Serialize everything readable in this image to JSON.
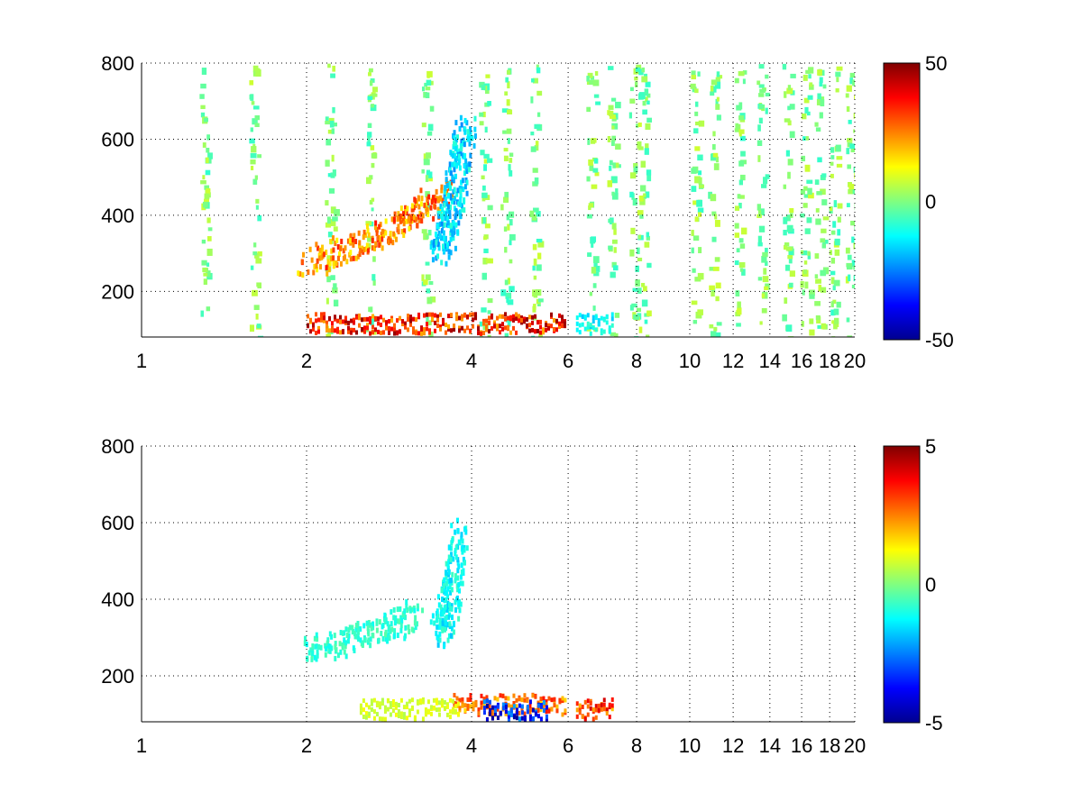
{
  "chart_data": [
    {
      "type": "heatmap",
      "title": "",
      "xlabel": "",
      "ylabel": "",
      "x_scale": "log",
      "xlim": [
        1,
        20
      ],
      "ylim": [
        80,
        800
      ],
      "xticks": [
        1,
        2,
        4,
        6,
        8,
        10,
        12,
        14,
        16,
        18,
        20
      ],
      "yticks": [
        200,
        400,
        600,
        800
      ],
      "grid": true,
      "colormap": "jet",
      "colorbar": {
        "range": [
          -50,
          50
        ],
        "ticks": [
          50,
          0,
          -50
        ],
        "position": "right"
      },
      "features": [
        {
          "kind": "ridge",
          "x": [
            2.0,
            2.4,
            2.8,
            3.2,
            3.6
          ],
          "y": [
            280,
            320,
            360,
            420,
            470
          ],
          "value": 30
        },
        {
          "kind": "ridge",
          "x": [
            3.5,
            3.6,
            3.7,
            3.8,
            3.9
          ],
          "y": [
            300,
            380,
            450,
            560,
            650
          ],
          "value": -20
        },
        {
          "kind": "band",
          "x_range": [
            2.0,
            5.9
          ],
          "y": 120,
          "value": 40
        },
        {
          "kind": "band",
          "x_range": [
            6.2,
            7.2
          ],
          "y": 120,
          "value": -15
        }
      ],
      "noise_columns": [
        1.3,
        1.6,
        2.2,
        2.6,
        3.3,
        4.2,
        4.6,
        5.2,
        6.6,
        7.2,
        7.9,
        8.2,
        10.2,
        11.0,
        12.3,
        13.5,
        15.0,
        16.2,
        17.2,
        18.3,
        19.6
      ],
      "noise_level": 8
    },
    {
      "type": "heatmap",
      "title": "",
      "xlabel": "",
      "ylabel": "",
      "x_scale": "log",
      "xlim": [
        1,
        20
      ],
      "ylim": [
        80,
        800
      ],
      "xticks": [
        1,
        2,
        4,
        6,
        8,
        10,
        12,
        14,
        16,
        18,
        20
      ],
      "yticks": [
        200,
        400,
        600,
        800
      ],
      "grid": true,
      "colormap": "jet",
      "colorbar": {
        "range": [
          -5,
          5
        ],
        "ticks": [
          5,
          0,
          -5
        ],
        "position": "right"
      },
      "features": [
        {
          "kind": "ridge",
          "x": [
            2.0,
            2.4,
            2.8,
            3.2
          ],
          "y": [
            275,
            300,
            330,
            370
          ],
          "value": -1
        },
        {
          "kind": "ridge",
          "x": [
            3.5,
            3.6,
            3.7,
            3.8
          ],
          "y": [
            310,
            380,
            470,
            600
          ],
          "value": -1.5
        },
        {
          "kind": "band",
          "x_range": [
            3.7,
            5.9
          ],
          "y": 130,
          "value": 3
        },
        {
          "kind": "band",
          "x_range": [
            4.2,
            5.5
          ],
          "y": 115,
          "value": -4
        },
        {
          "kind": "band",
          "x_range": [
            2.5,
            3.8
          ],
          "y": 118,
          "value": 1
        },
        {
          "kind": "band",
          "x_range": [
            6.2,
            7.2
          ],
          "y": 118,
          "value": 3.5
        }
      ],
      "noise_columns": [],
      "noise_level": 0
    }
  ]
}
